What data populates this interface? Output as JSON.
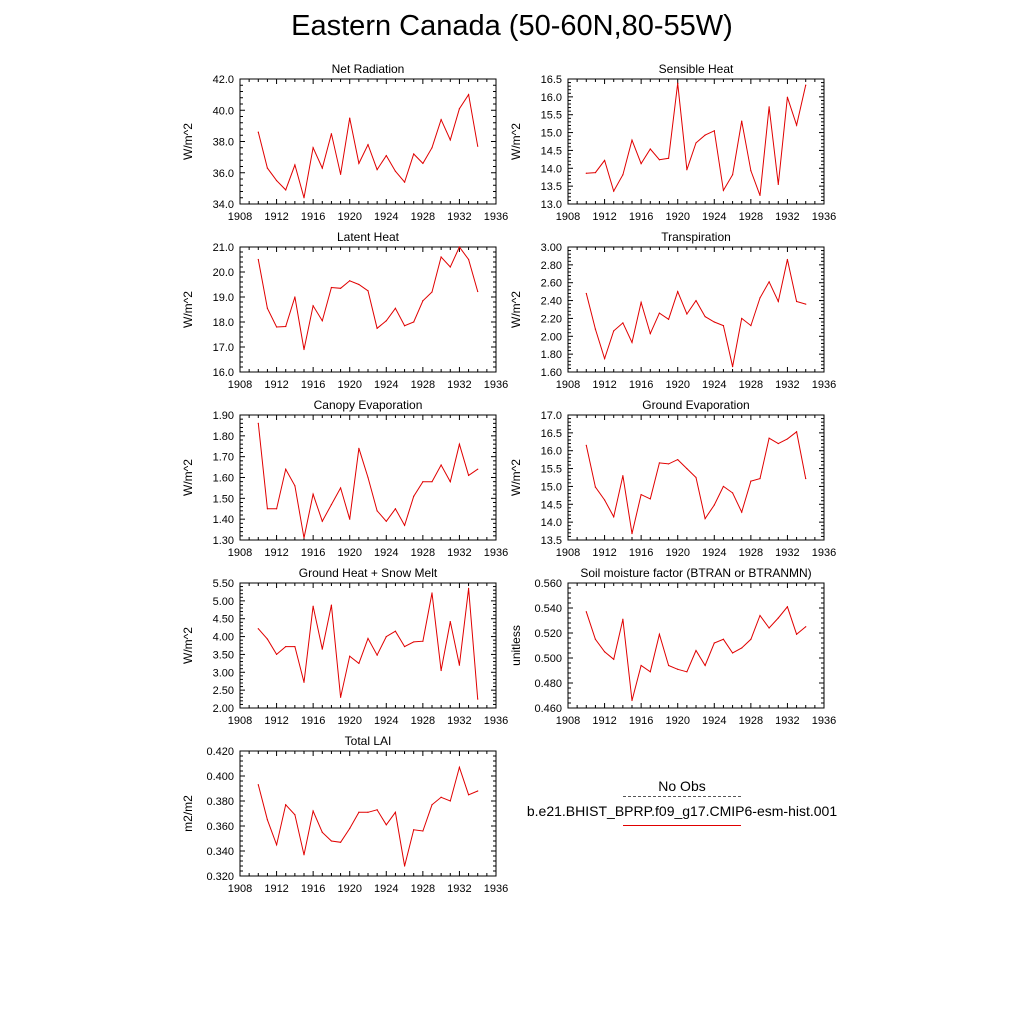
{
  "title": "Eastern Canada (50-60N,80-55W)",
  "legend": {
    "obs_label": "No Obs",
    "model_label": "b.e21.BHIST_BPRP.f09_g17.CMIP6-esm-hist.001",
    "model_color": "#e00000",
    "obs_color": "#555555"
  },
  "chart_data": [
    {
      "type": "line",
      "title": "Net Radiation",
      "ylabel": "W/m^2",
      "xlim": [
        1908,
        1936
      ],
      "ylim": [
        34.0,
        42.0
      ],
      "xticks": [
        "1908",
        "1912",
        "1916",
        "1920",
        "1924",
        "1928",
        "1932",
        "1936"
      ],
      "yticks": [
        "34.0",
        "36.0",
        "38.0",
        "40.0",
        "42.0"
      ],
      "x": [
        1910,
        1911,
        1912,
        1913,
        1914,
        1915,
        1916,
        1917,
        1918,
        1919,
        1920,
        1921,
        1922,
        1923,
        1924,
        1925,
        1926,
        1927,
        1928,
        1929,
        1930,
        1931,
        1932,
        1933,
        1934
      ],
      "series": [
        {
          "values": [
            38.6,
            36.3,
            35.5,
            34.9,
            36.5,
            34.4,
            37.6,
            36.3,
            38.5,
            35.9,
            39.5,
            36.6,
            37.8,
            36.2,
            37.1,
            36.1,
            35.4,
            37.2,
            36.6,
            37.6,
            39.4,
            38.1,
            40.1,
            41.0,
            37.7
          ]
        }
      ]
    },
    {
      "type": "line",
      "title": "Sensible Heat",
      "ylabel": "W/m^2",
      "xlim": [
        1908,
        1936
      ],
      "ylim": [
        13.0,
        16.5
      ],
      "xticks": [
        "1908",
        "1912",
        "1916",
        "1920",
        "1924",
        "1928",
        "1932",
        "1936"
      ],
      "yticks": [
        "13.0",
        "13.5",
        "14.0",
        "14.5",
        "15.0",
        "15.5",
        "16.0",
        "16.5"
      ],
      "x": [
        1910,
        1911,
        1912,
        1913,
        1914,
        1915,
        1916,
        1917,
        1918,
        1919,
        1920,
        1921,
        1922,
        1923,
        1924,
        1925,
        1926,
        1927,
        1928,
        1929,
        1930,
        1931,
        1932,
        1933,
        1934
      ],
      "series": [
        {
          "values": [
            13.86,
            13.88,
            14.22,
            13.36,
            13.82,
            14.79,
            14.13,
            14.54,
            14.24,
            14.28,
            16.38,
            13.96,
            14.71,
            14.93,
            15.05,
            13.38,
            13.82,
            15.32,
            13.93,
            13.24,
            15.72,
            13.55,
            15.99,
            15.21,
            16.33
          ]
        }
      ]
    },
    {
      "type": "line",
      "title": "Latent Heat",
      "ylabel": "W/m^2",
      "xlim": [
        1908,
        1936
      ],
      "ylim": [
        16.0,
        21.0
      ],
      "xticks": [
        "1908",
        "1912",
        "1916",
        "1920",
        "1924",
        "1928",
        "1932",
        "1936"
      ],
      "yticks": [
        "16.0",
        "17.0",
        "18.0",
        "19.0",
        "20.0",
        "21.0"
      ],
      "x": [
        1910,
        1911,
        1912,
        1913,
        1914,
        1915,
        1916,
        1917,
        1918,
        1919,
        1920,
        1921,
        1922,
        1923,
        1924,
        1925,
        1926,
        1927,
        1928,
        1929,
        1930,
        1931,
        1932,
        1933,
        1934
      ],
      "series": [
        {
          "values": [
            20.5,
            18.55,
            17.8,
            17.82,
            19.0,
            16.9,
            18.65,
            18.05,
            19.38,
            19.35,
            19.65,
            19.5,
            19.25,
            17.75,
            18.05,
            18.55,
            17.85,
            18.0,
            18.85,
            19.2,
            20.6,
            20.2,
            21.0,
            20.5,
            19.22
          ]
        }
      ]
    },
    {
      "type": "line",
      "title": "Transpiration",
      "ylabel": "W/m^2",
      "xlim": [
        1908,
        1936
      ],
      "ylim": [
        1.6,
        3.0
      ],
      "xticks": [
        "1908",
        "1912",
        "1916",
        "1920",
        "1924",
        "1928",
        "1932",
        "1936"
      ],
      "yticks": [
        "1.60",
        "1.80",
        "2.00",
        "2.20",
        "2.40",
        "2.60",
        "2.80",
        "3.00"
      ],
      "x": [
        1910,
        1911,
        1912,
        1913,
        1914,
        1915,
        1916,
        1917,
        1918,
        1919,
        1920,
        1921,
        1922,
        1923,
        1924,
        1925,
        1926,
        1927,
        1928,
        1929,
        1930,
        1931,
        1932,
        1933,
        1934
      ],
      "series": [
        {
          "values": [
            2.48,
            2.08,
            1.75,
            2.06,
            2.15,
            1.93,
            2.38,
            2.03,
            2.26,
            2.19,
            2.5,
            2.25,
            2.4,
            2.22,
            2.16,
            2.12,
            1.66,
            2.2,
            2.12,
            2.43,
            2.61,
            2.39,
            2.86,
            2.39,
            2.36
          ]
        }
      ]
    },
    {
      "type": "line",
      "title": "Canopy Evaporation",
      "ylabel": "W/m^2",
      "xlim": [
        1908,
        1936
      ],
      "ylim": [
        1.3,
        1.9
      ],
      "xticks": [
        "1908",
        "1912",
        "1916",
        "1920",
        "1924",
        "1928",
        "1932",
        "1936"
      ],
      "yticks": [
        "1.30",
        "1.40",
        "1.50",
        "1.60",
        "1.70",
        "1.80",
        "1.90"
      ],
      "x": [
        1910,
        1911,
        1912,
        1913,
        1914,
        1915,
        1916,
        1917,
        1918,
        1919,
        1920,
        1921,
        1922,
        1923,
        1924,
        1925,
        1926,
        1927,
        1928,
        1929,
        1930,
        1931,
        1932,
        1933,
        1934
      ],
      "series": [
        {
          "values": [
            1.86,
            1.45,
            1.45,
            1.64,
            1.56,
            1.31,
            1.52,
            1.39,
            1.47,
            1.55,
            1.4,
            1.74,
            1.6,
            1.44,
            1.39,
            1.45,
            1.37,
            1.51,
            1.58,
            1.58,
            1.66,
            1.58,
            1.76,
            1.61,
            1.64
          ]
        }
      ]
    },
    {
      "type": "line",
      "title": "Ground Evaporation",
      "ylabel": "W/m^2",
      "xlim": [
        1908,
        1936
      ],
      "ylim": [
        13.5,
        17.0
      ],
      "xticks": [
        "1908",
        "1912",
        "1916",
        "1920",
        "1924",
        "1928",
        "1932",
        "1936"
      ],
      "yticks": [
        "13.5",
        "14.0",
        "14.5",
        "15.0",
        "15.5",
        "16.0",
        "16.5",
        "17.0"
      ],
      "x": [
        1910,
        1911,
        1912,
        1913,
        1914,
        1915,
        1916,
        1917,
        1918,
        1919,
        1920,
        1921,
        1922,
        1923,
        1924,
        1925,
        1926,
        1927,
        1928,
        1929,
        1930,
        1931,
        1932,
        1933,
        1934
      ],
      "series": [
        {
          "values": [
            16.15,
            14.98,
            14.62,
            14.15,
            15.3,
            13.68,
            14.77,
            14.65,
            15.66,
            15.63,
            15.75,
            15.5,
            15.25,
            14.1,
            14.48,
            15.0,
            14.82,
            14.28,
            15.15,
            15.22,
            16.35,
            16.2,
            16.33,
            16.53,
            15.22
          ]
        }
      ]
    },
    {
      "type": "line",
      "title": "Ground Heat + Snow Melt",
      "ylabel": "W/m^2",
      "xlim": [
        1908,
        1936
      ],
      "ylim": [
        2.0,
        5.5
      ],
      "xticks": [
        "1908",
        "1912",
        "1916",
        "1920",
        "1924",
        "1928",
        "1932",
        "1936"
      ],
      "yticks": [
        "2.00",
        "2.50",
        "3.00",
        "3.50",
        "4.00",
        "4.50",
        "5.00",
        "5.50"
      ],
      "x": [
        1910,
        1911,
        1912,
        1913,
        1914,
        1915,
        1916,
        1917,
        1918,
        1919,
        1920,
        1921,
        1922,
        1923,
        1924,
        1925,
        1926,
        1927,
        1928,
        1929,
        1930,
        1931,
        1932,
        1933,
        1934
      ],
      "series": [
        {
          "values": [
            4.22,
            3.93,
            3.5,
            3.72,
            3.72,
            2.72,
            4.85,
            3.65,
            4.88,
            2.3,
            3.45,
            3.25,
            3.95,
            3.48,
            4.0,
            4.15,
            3.72,
            3.85,
            3.87,
            5.22,
            3.05,
            4.42,
            3.2,
            5.35,
            2.25
          ]
        }
      ]
    },
    {
      "type": "line",
      "title": "Soil moisture factor (BTRAN or BTRANMN)",
      "ylabel": "unitless",
      "xlim": [
        1908,
        1936
      ],
      "ylim": [
        0.46,
        0.56
      ],
      "xticks": [
        "1908",
        "1912",
        "1916",
        "1920",
        "1924",
        "1928",
        "1932",
        "1936"
      ],
      "yticks": [
        "0.460",
        "0.480",
        "0.500",
        "0.520",
        "0.540",
        "0.560"
      ],
      "x": [
        1910,
        1911,
        1912,
        1913,
        1914,
        1915,
        1916,
        1917,
        1918,
        1919,
        1920,
        1921,
        1922,
        1923,
        1924,
        1925,
        1926,
        1927,
        1928,
        1929,
        1930,
        1931,
        1932,
        1933,
        1934
      ],
      "series": [
        {
          "values": [
            0.537,
            0.515,
            0.505,
            0.499,
            0.531,
            0.466,
            0.494,
            0.489,
            0.519,
            0.494,
            0.491,
            0.489,
            0.506,
            0.494,
            0.512,
            0.515,
            0.504,
            0.508,
            0.515,
            0.534,
            0.524,
            0.532,
            0.541,
            0.519,
            0.525
          ]
        }
      ]
    },
    {
      "type": "line",
      "title": "Total LAI",
      "ylabel": "m2/m2",
      "xlim": [
        1908,
        1936
      ],
      "ylim": [
        0.32,
        0.42
      ],
      "xticks": [
        "1908",
        "1912",
        "1916",
        "1920",
        "1924",
        "1928",
        "1932",
        "1936"
      ],
      "yticks": [
        "0.320",
        "0.340",
        "0.360",
        "0.380",
        "0.400",
        "0.420"
      ],
      "x": [
        1910,
        1911,
        1912,
        1913,
        1914,
        1915,
        1916,
        1917,
        1918,
        1919,
        1920,
        1921,
        1922,
        1923,
        1924,
        1925,
        1926,
        1927,
        1928,
        1929,
        1930,
        1931,
        1932,
        1933,
        1934
      ],
      "series": [
        {
          "values": [
            0.393,
            0.365,
            0.345,
            0.377,
            0.369,
            0.337,
            0.372,
            0.355,
            0.348,
            0.347,
            0.358,
            0.371,
            0.371,
            0.373,
            0.361,
            0.371,
            0.328,
            0.357,
            0.356,
            0.377,
            0.383,
            0.38,
            0.407,
            0.385,
            0.388
          ]
        }
      ]
    }
  ]
}
